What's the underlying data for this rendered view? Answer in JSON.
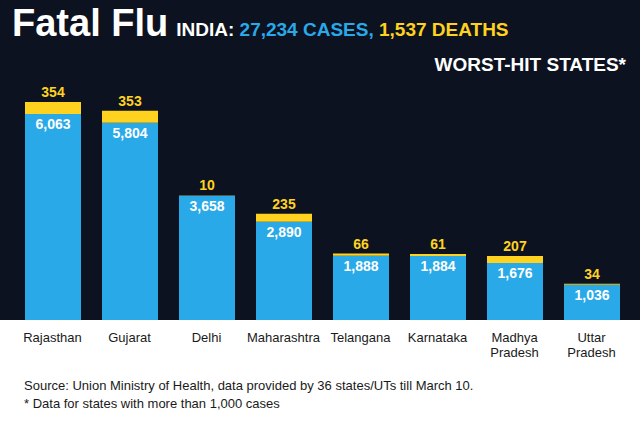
{
  "chart_data": {
    "type": "bar",
    "title": "Fatal Flu",
    "subtitle": [
      "INDIA:",
      "27,234 CASES,",
      "1,537 DEATHS"
    ],
    "annotations": [
      "WORST-HIT STATES*"
    ],
    "notes": [
      "Source: Union Ministry of Health, data provided by 36 states/UTs till March 10.",
      "* Data for states with more than 1,000 cases"
    ],
    "categories": [
      "Rajasthan",
      "Gujarat",
      "Delhi",
      "Maharashtra",
      "Telangana",
      "Karnataka",
      "Madhya Pradesh",
      "Uttar Pradesh"
    ],
    "series": [
      {
        "name": "CASES",
        "color": "#29a9e8",
        "values": [
          6063,
          5804,
          3658,
          2890,
          1888,
          1884,
          1676,
          1036
        ]
      },
      {
        "name": "DEATHS",
        "color": "#ffd21f",
        "values": [
          354,
          353,
          10,
          235,
          66,
          61,
          207,
          34
        ]
      }
    ],
    "stacked": true,
    "data_labels": true,
    "tick_labels": "x",
    "grid": false
  }
}
